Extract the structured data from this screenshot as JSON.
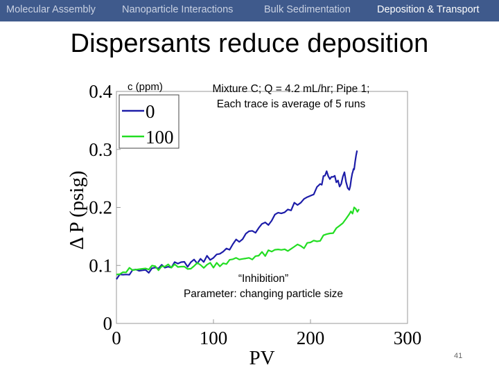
{
  "nav": {
    "tabs": [
      {
        "label": "Molecular Assembly",
        "active": false
      },
      {
        "label": "Nanoparticle Interactions",
        "active": false
      },
      {
        "label": "Bulk Sedimentation",
        "active": false
      },
      {
        "label": "Deposition & Transport",
        "active": true
      }
    ],
    "bg_color": "#3f5a8c"
  },
  "slide": {
    "title": "Dispersants reduce deposition",
    "legend_title": "c (ppm)",
    "annotation_line1": "Mixture C; Q = 4.2 mL/hr; Pipe 1;",
    "annotation_line2": "Each trace is average of 5 runs",
    "inhibition_label": "“Inhibition”",
    "parameter_label": "Parameter: changing particle size",
    "page_number": "41"
  },
  "chart_data": {
    "type": "line",
    "title": "",
    "xlabel": "PV",
    "ylabel": "Δ P (psig)",
    "xlim": [
      0,
      300
    ],
    "ylim": [
      0,
      0.4
    ],
    "xticks": [
      "0",
      "100",
      "200",
      "300"
    ],
    "yticks": [
      "0",
      "0.1",
      "0.2",
      "0.3",
      "0.4"
    ],
    "xtick_values": [
      0,
      100,
      200,
      300
    ],
    "ytick_values": [
      0,
      0.1,
      0.2,
      0.3,
      0.4
    ],
    "legend_position": "top-left",
    "series": [
      {
        "name": "0",
        "color": "#1c1ca8",
        "x": [
          0,
          10,
          20,
          30,
          40,
          50,
          60,
          70,
          80,
          90,
          100,
          110,
          120,
          130,
          140,
          150,
          160,
          170,
          180,
          190,
          200,
          210,
          215,
          220,
          225,
          230,
          235,
          240,
          243,
          245,
          248
        ],
        "y": [
          0.08,
          0.085,
          0.09,
          0.092,
          0.095,
          0.098,
          0.1,
          0.102,
          0.105,
          0.11,
          0.115,
          0.125,
          0.135,
          0.148,
          0.158,
          0.168,
          0.178,
          0.19,
          0.2,
          0.21,
          0.22,
          0.235,
          0.26,
          0.25,
          0.255,
          0.238,
          0.255,
          0.23,
          0.255,
          0.27,
          0.298
        ]
      },
      {
        "name": "100",
        "color": "#22dd22",
        "x": [
          0,
          10,
          20,
          30,
          40,
          50,
          60,
          70,
          80,
          90,
          100,
          110,
          120,
          130,
          140,
          150,
          160,
          170,
          180,
          190,
          200,
          210,
          220,
          230,
          240,
          245,
          250
        ],
        "y": [
          0.09,
          0.09,
          0.092,
          0.094,
          0.095,
          0.096,
          0.097,
          0.098,
          0.1,
          0.1,
          0.102,
          0.105,
          0.108,
          0.112,
          0.115,
          0.118,
          0.122,
          0.128,
          0.13,
          0.132,
          0.135,
          0.145,
          0.155,
          0.165,
          0.185,
          0.195,
          0.197
        ]
      }
    ]
  }
}
